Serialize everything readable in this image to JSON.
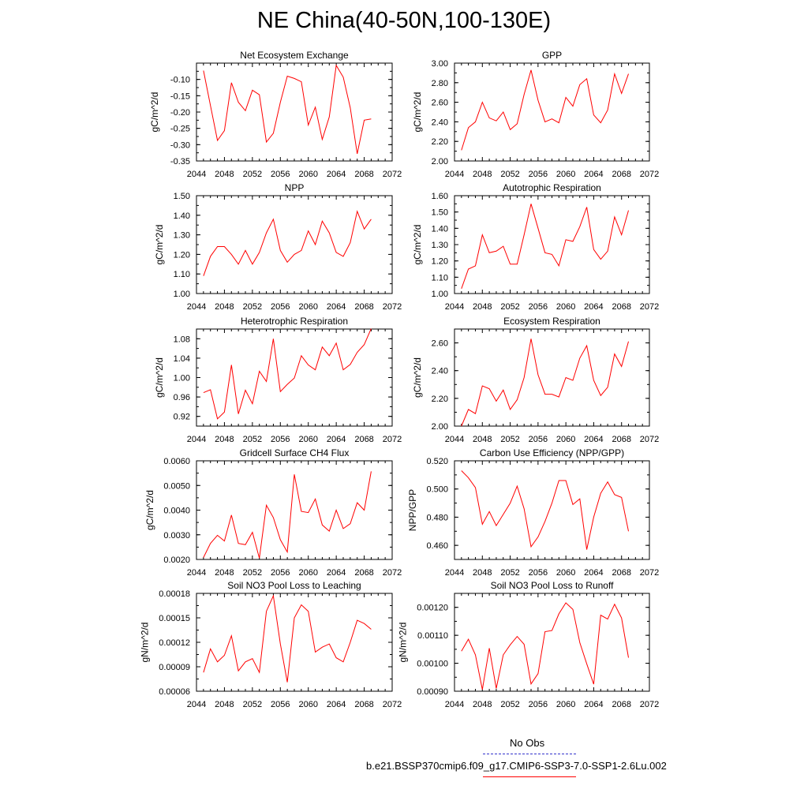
{
  "page_title": "NE China(40-50N,100-130E)",
  "legend": {
    "items": [
      {
        "label": "No Obs",
        "color": "#3333cc",
        "style": "dashed"
      },
      {
        "label": "b.e21.BSSP370cmip6.f09_g17.CMIP6-SSP3-7.0-SSP1-2.6Lu.002",
        "color": "#ff0000",
        "style": "solid"
      }
    ]
  },
  "chart_data": [
    {
      "type": "line",
      "title": "Net Ecosystem Exchange",
      "ylabel": "gC/m^2/d",
      "xlabel": "",
      "xlim": [
        2044,
        2072
      ],
      "xticks": [
        "2044",
        "2048",
        "2052",
        "2056",
        "2060",
        "2064",
        "2068",
        "2072"
      ],
      "ylim": [
        -0.35,
        -0.05
      ],
      "yticks": [
        "-0.35",
        "-0.30",
        "-0.25",
        "-0.20",
        "-0.15",
        "-0.10"
      ],
      "x": [
        2045,
        2046,
        2047,
        2048,
        2049,
        2050,
        2051,
        2052,
        2053,
        2054,
        2055,
        2056,
        2057,
        2058,
        2059,
        2060,
        2061,
        2062,
        2063,
        2064,
        2065,
        2066,
        2067,
        2068,
        2069
      ],
      "series": [
        {
          "color": "#ff0000",
          "values": [
            -0.073,
            -0.18,
            -0.287,
            -0.257,
            -0.11,
            -0.17,
            -0.196,
            -0.133,
            -0.147,
            -0.292,
            -0.265,
            -0.17,
            -0.09,
            -0.097,
            -0.107,
            -0.24,
            -0.185,
            -0.284,
            -0.215,
            -0.057,
            -0.093,
            -0.187,
            -0.328,
            -0.225,
            -0.221
          ]
        }
      ]
    },
    {
      "type": "line",
      "title": "GPP",
      "ylabel": "gC/m^2/d",
      "xlabel": "",
      "xlim": [
        2044,
        2072
      ],
      "xticks": [
        "2044",
        "2048",
        "2052",
        "2056",
        "2060",
        "2064",
        "2068",
        "2072"
      ],
      "ylim": [
        2.0,
        3.0
      ],
      "yticks": [
        "2.00",
        "2.20",
        "2.40",
        "2.60",
        "2.80",
        "3.00"
      ],
      "x": [
        2045,
        2046,
        2047,
        2048,
        2049,
        2050,
        2051,
        2052,
        2053,
        2054,
        2055,
        2056,
        2057,
        2058,
        2059,
        2060,
        2061,
        2062,
        2063,
        2064,
        2065,
        2066,
        2067,
        2068,
        2069
      ],
      "series": [
        {
          "color": "#ff0000",
          "values": [
            2.11,
            2.34,
            2.4,
            2.6,
            2.44,
            2.41,
            2.5,
            2.32,
            2.38,
            2.68,
            2.93,
            2.62,
            2.4,
            2.43,
            2.39,
            2.65,
            2.56,
            2.78,
            2.84,
            2.47,
            2.39,
            2.52,
            2.89,
            2.69,
            2.89
          ]
        }
      ]
    },
    {
      "type": "line",
      "title": "NPP",
      "ylabel": "gC/m^2/d",
      "xlabel": "",
      "xlim": [
        2044,
        2072
      ],
      "xticks": [
        "2044",
        "2048",
        "2052",
        "2056",
        "2060",
        "2064",
        "2068",
        "2072"
      ],
      "ylim": [
        1.0,
        1.5
      ],
      "yticks": [
        "1.00",
        "1.10",
        "1.20",
        "1.30",
        "1.40",
        "1.50"
      ],
      "x": [
        2045,
        2046,
        2047,
        2048,
        2049,
        2050,
        2051,
        2052,
        2053,
        2054,
        2055,
        2056,
        2057,
        2058,
        2059,
        2060,
        2061,
        2062,
        2063,
        2064,
        2065,
        2066,
        2067,
        2068,
        2069
      ],
      "series": [
        {
          "color": "#ff0000",
          "values": [
            1.09,
            1.19,
            1.24,
            1.24,
            1.2,
            1.15,
            1.22,
            1.15,
            1.21,
            1.31,
            1.38,
            1.22,
            1.16,
            1.2,
            1.22,
            1.32,
            1.25,
            1.37,
            1.31,
            1.21,
            1.19,
            1.26,
            1.42,
            1.33,
            1.38
          ]
        }
      ]
    },
    {
      "type": "line",
      "title": "Autotrophic Respiration",
      "ylabel": "gC/m^2/d",
      "xlabel": "",
      "xlim": [
        2044,
        2072
      ],
      "xticks": [
        "2044",
        "2048",
        "2052",
        "2056",
        "2060",
        "2064",
        "2068",
        "2072"
      ],
      "ylim": [
        1.0,
        1.6
      ],
      "yticks": [
        "1.00",
        "1.10",
        "1.20",
        "1.30",
        "1.40",
        "1.50",
        "1.60"
      ],
      "x": [
        2045,
        2046,
        2047,
        2048,
        2049,
        2050,
        2051,
        2052,
        2053,
        2054,
        2055,
        2056,
        2057,
        2058,
        2059,
        2060,
        2061,
        2062,
        2063,
        2064,
        2065,
        2066,
        2067,
        2068,
        2069
      ],
      "series": [
        {
          "color": "#ff0000",
          "values": [
            1.03,
            1.15,
            1.17,
            1.36,
            1.25,
            1.26,
            1.29,
            1.18,
            1.18,
            1.36,
            1.55,
            1.4,
            1.25,
            1.24,
            1.17,
            1.33,
            1.32,
            1.41,
            1.53,
            1.27,
            1.21,
            1.26,
            1.47,
            1.36,
            1.51
          ]
        }
      ]
    },
    {
      "type": "line",
      "title": "Heterotrophic Respiration",
      "ylabel": "gC/m^2/d",
      "xlabel": "",
      "xlim": [
        2044,
        2072
      ],
      "xticks": [
        "2044",
        "2048",
        "2052",
        "2056",
        "2060",
        "2064",
        "2068",
        "2072"
      ],
      "ylim": [
        0.9,
        1.1
      ],
      "yticks": [
        "0.92",
        "0.96",
        "1.00",
        "1.04",
        "1.08"
      ],
      "x": [
        2045,
        2046,
        2047,
        2048,
        2049,
        2050,
        2051,
        2052,
        2053,
        2054,
        2055,
        2056,
        2057,
        2058,
        2059,
        2060,
        2061,
        2062,
        2063,
        2064,
        2065,
        2066,
        2067,
        2068,
        2069
      ],
      "series": [
        {
          "color": "#ff0000",
          "values": [
            0.969,
            0.975,
            0.915,
            0.929,
            1.026,
            0.925,
            0.974,
            0.946,
            1.013,
            0.992,
            1.08,
            0.971,
            0.986,
            0.999,
            1.045,
            1.026,
            1.016,
            1.063,
            1.045,
            1.071,
            1.016,
            1.027,
            1.052,
            1.068,
            1.101
          ]
        }
      ]
    },
    {
      "type": "line",
      "title": "Ecosystem Respiration",
      "ylabel": "gC/m^2/d",
      "xlabel": "",
      "xlim": [
        2044,
        2072
      ],
      "xticks": [
        "2044",
        "2048",
        "2052",
        "2056",
        "2060",
        "2064",
        "2068",
        "2072"
      ],
      "ylim": [
        2.0,
        2.7
      ],
      "yticks": [
        "2.00",
        "2.20",
        "2.40",
        "2.60"
      ],
      "x": [
        2045,
        2046,
        2047,
        2048,
        2049,
        2050,
        2051,
        2052,
        2053,
        2054,
        2055,
        2056,
        2057,
        2058,
        2059,
        2060,
        2061,
        2062,
        2063,
        2064,
        2065,
        2066,
        2067,
        2068,
        2069
      ],
      "series": [
        {
          "color": "#ff0000",
          "values": [
            2.0,
            2.12,
            2.09,
            2.29,
            2.27,
            2.18,
            2.26,
            2.12,
            2.19,
            2.35,
            2.63,
            2.37,
            2.23,
            2.23,
            2.21,
            2.35,
            2.33,
            2.49,
            2.58,
            2.33,
            2.22,
            2.28,
            2.52,
            2.43,
            2.61
          ]
        }
      ]
    },
    {
      "type": "line",
      "title": "Gridcell Surface CH4 Flux",
      "ylabel": "gC/m^2/d",
      "xlabel": "",
      "xlim": [
        2044,
        2072
      ],
      "xticks": [
        "2044",
        "2048",
        "2052",
        "2056",
        "2060",
        "2064",
        "2068",
        "2072"
      ],
      "ylim": [
        0.002,
        0.006
      ],
      "yticks": [
        "0.0020",
        "0.0030",
        "0.0040",
        "0.0050",
        "0.0060"
      ],
      "x": [
        2045,
        2046,
        2047,
        2048,
        2049,
        2050,
        2051,
        2052,
        2053,
        2054,
        2055,
        2056,
        2057,
        2058,
        2059,
        2060,
        2061,
        2062,
        2063,
        2064,
        2065,
        2066,
        2067,
        2068,
        2069
      ],
      "series": [
        {
          "color": "#ff0000",
          "values": [
            0.00208,
            0.00265,
            0.00298,
            0.00275,
            0.0038,
            0.00265,
            0.0026,
            0.0031,
            0.00205,
            0.0042,
            0.0037,
            0.0028,
            0.0023,
            0.00545,
            0.00395,
            0.0039,
            0.00445,
            0.0034,
            0.00315,
            0.004,
            0.00325,
            0.00345,
            0.0043,
            0.004,
            0.00557
          ]
        }
      ]
    },
    {
      "type": "line",
      "title": "Carbon Use Efficiency (NPP/GPP)",
      "ylabel": "NPP/GPP",
      "xlabel": "",
      "xlim": [
        2044,
        2072
      ],
      "xticks": [
        "2044",
        "2048",
        "2052",
        "2056",
        "2060",
        "2064",
        "2068",
        "2072"
      ],
      "ylim": [
        0.45,
        0.52
      ],
      "yticks": [
        "0.460",
        "0.480",
        "0.500",
        "0.520"
      ],
      "x": [
        2045,
        2046,
        2047,
        2048,
        2049,
        2050,
        2051,
        2052,
        2053,
        2054,
        2055,
        2056,
        2057,
        2058,
        2059,
        2060,
        2061,
        2062,
        2063,
        2064,
        2065,
        2066,
        2067,
        2068,
        2069
      ],
      "series": [
        {
          "color": "#ff0000",
          "values": [
            0.513,
            0.508,
            0.501,
            0.475,
            0.484,
            0.474,
            0.482,
            0.49,
            0.502,
            0.486,
            0.459,
            0.466,
            0.477,
            0.49,
            0.506,
            0.506,
            0.489,
            0.493,
            0.457,
            0.48,
            0.497,
            0.505,
            0.496,
            0.494,
            0.47
          ]
        }
      ]
    },
    {
      "type": "line",
      "title": "Soil NO3 Pool Loss to Leaching",
      "ylabel": "gN/m^2/d",
      "xlabel": "",
      "xlim": [
        2044,
        2072
      ],
      "xticks": [
        "2044",
        "2048",
        "2052",
        "2056",
        "2060",
        "2064",
        "2068",
        "2072"
      ],
      "ylim": [
        6e-05,
        0.00018
      ],
      "yticks": [
        "0.00006",
        "0.00009",
        "0.00012",
        "0.00015",
        "0.00018"
      ],
      "x": [
        2045,
        2046,
        2047,
        2048,
        2049,
        2050,
        2051,
        2052,
        2053,
        2054,
        2055,
        2056,
        2057,
        2058,
        2059,
        2060,
        2061,
        2062,
        2063,
        2064,
        2065,
        2066,
        2067,
        2068,
        2069
      ],
      "series": [
        {
          "color": "#ff0000",
          "values": [
            8.3e-05,
            0.000112,
            9.6e-05,
            0.000104,
            0.000128,
            8.5e-05,
            9.6e-05,
            0.0001,
            8.3e-05,
            0.000158,
            0.000177,
            0.000118,
            7.1e-05,
            0.00015,
            0.000166,
            0.000158,
            0.000108,
            0.000114,
            0.000118,
            0.000101,
            9.6e-05,
            0.00012,
            0.000147,
            0.000143,
            0.000136
          ]
        }
      ]
    },
    {
      "type": "line",
      "title": "Soil NO3 Pool Loss to Runoff",
      "ylabel": "gN/m^2/d",
      "xlabel": "",
      "xlim": [
        2044,
        2072
      ],
      "xticks": [
        "2044",
        "2048",
        "2052",
        "2056",
        "2060",
        "2064",
        "2068",
        "2072"
      ],
      "ylim": [
        0.0009,
        0.00125
      ],
      "yticks": [
        "0.00090",
        "0.00100",
        "0.00110",
        "0.00120"
      ],
      "x": [
        2045,
        2046,
        2047,
        2048,
        2049,
        2050,
        2051,
        2052,
        2053,
        2054,
        2055,
        2056,
        2057,
        2058,
        2059,
        2060,
        2061,
        2062,
        2063,
        2064,
        2065,
        2066,
        2067,
        2068,
        2069
      ],
      "series": [
        {
          "color": "#ff0000",
          "values": [
            0.001043,
            0.001086,
            0.00103,
            0.000906,
            0.001054,
            0.00091,
            0.00103,
            0.001066,
            0.001096,
            0.001068,
            0.000926,
            0.000963,
            0.001113,
            0.001117,
            0.001177,
            0.001216,
            0.001193,
            0.001074,
            0.000998,
            0.000925,
            0.001172,
            0.001158,
            0.001211,
            0.001162,
            0.00102
          ]
        }
      ]
    }
  ]
}
